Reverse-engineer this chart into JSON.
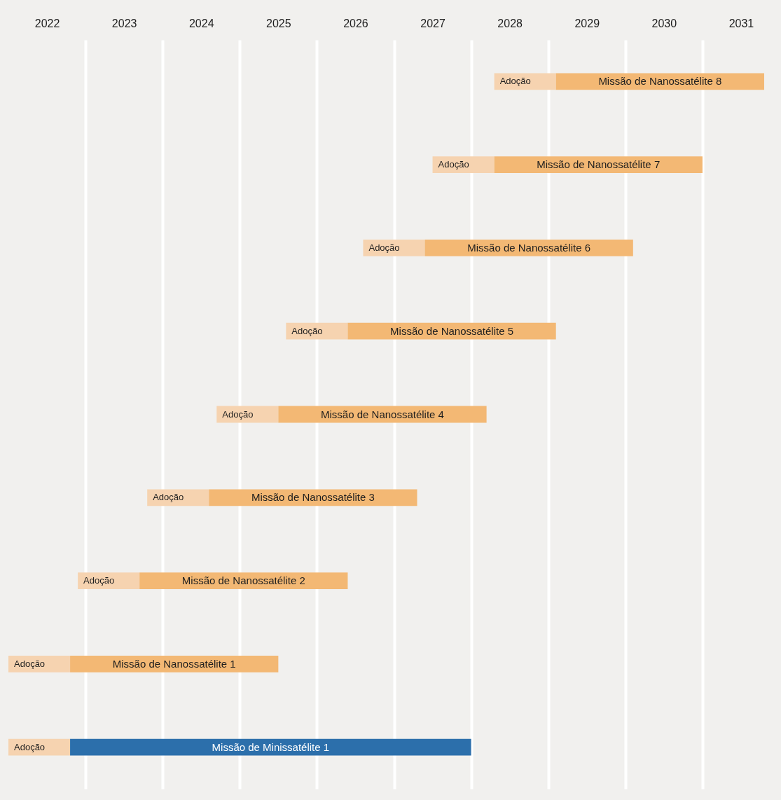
{
  "chart_data": {
    "type": "bar",
    "orientation": "horizontal",
    "categories": [
      "Missão de Nanossatélite 8",
      "Missão de Nanossatélite 7",
      "Missão de Nanossatélite 6",
      "Missão de Nanossatélite 5",
      "Missão de Nanossatélite 4",
      "Missão de Nanossatélite 3",
      "Missão de Nanossatélite 2",
      "Missão de Nanossatélite 1",
      "Missão de Minissatélite 1"
    ],
    "series": [
      {
        "name": "Adoção",
        "color": "#f6d3b0",
        "base": [
          2028.3,
          2027.5,
          2026.6,
          2025.6,
          2024.7,
          2023.8,
          2022.9,
          2022.0,
          2022.0
        ],
        "values": [
          0.8,
          0.8,
          0.8,
          0.8,
          0.8,
          0.8,
          0.8,
          0.8,
          0.8
        ]
      },
      {
        "colors": [
          "#f3b874",
          "#f3b874",
          "#f3b874",
          "#f3b874",
          "#f3b874",
          "#f3b874",
          "#f3b874",
          "#f3b874",
          "#2c6fab"
        ],
        "base": [
          2029.1,
          2028.3,
          2027.4,
          2026.4,
          2025.5,
          2024.6,
          2023.7,
          2022.8,
          2022.8
        ],
        "values": [
          2.7,
          2.7,
          2.7,
          2.7,
          2.7,
          2.7,
          2.7,
          2.7,
          5.2
        ]
      }
    ],
    "xlim": [
      2022,
      2032
    ],
    "xticks": [
      {
        "value": 2022.5,
        "label": "2022"
      },
      {
        "value": 2023,
        "label": null
      },
      {
        "value": 2023.5,
        "label": "2023"
      },
      {
        "value": 2024,
        "label": null
      },
      {
        "value": 2024.5,
        "label": "2024"
      },
      {
        "value": 2025,
        "label": null
      },
      {
        "value": 2025.5,
        "label": "2025"
      },
      {
        "value": 2026,
        "label": null
      },
      {
        "value": 2026.5,
        "label": "2026"
      },
      {
        "value": 2027,
        "label": null
      },
      {
        "value": 2027.5,
        "label": "2027"
      },
      {
        "value": 2028,
        "label": null
      },
      {
        "value": 2028.5,
        "label": "2028"
      },
      {
        "value": 2029,
        "label": null
      },
      {
        "value": 2029.5,
        "label": "2029"
      },
      {
        "value": 2030,
        "label": null
      },
      {
        "value": 2030.5,
        "label": "2030"
      },
      {
        "value": 2031,
        "label": null
      },
      {
        "value": 2031.5,
        "label": "2031"
      }
    ],
    "grid": "x",
    "tick_labels": "x"
  }
}
